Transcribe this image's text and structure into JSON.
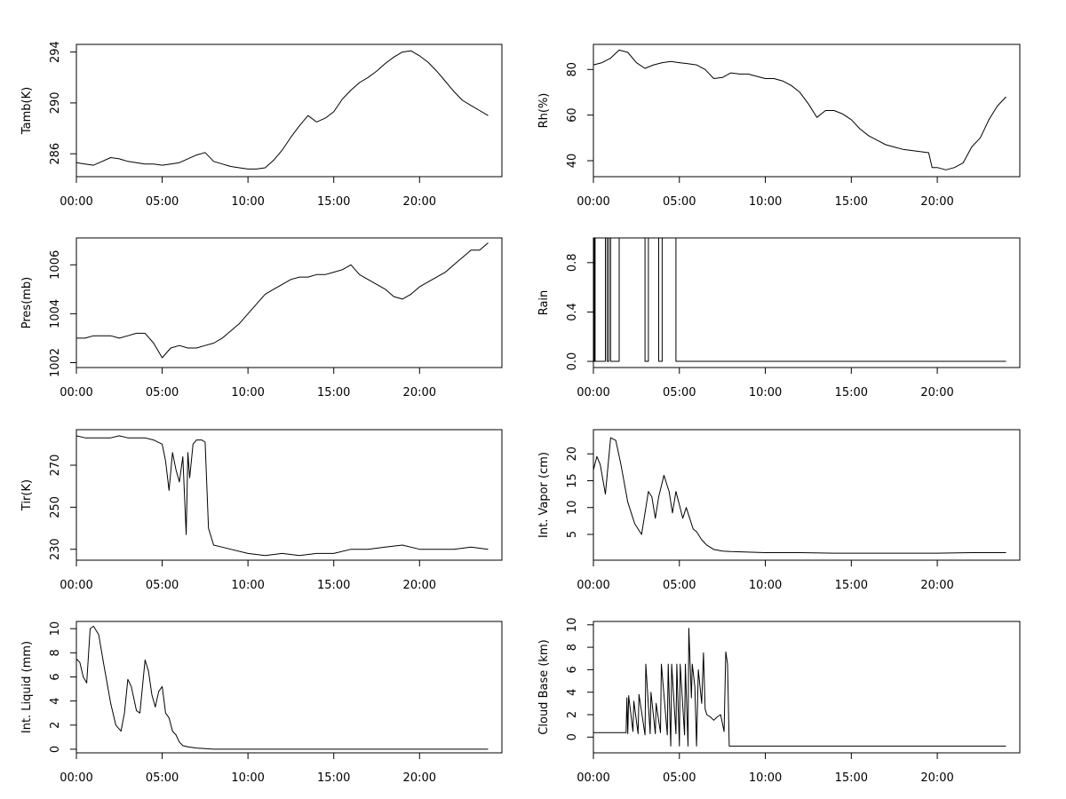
{
  "chart_data": [
    {
      "type": "line",
      "ylabel": "Tamb(K)",
      "xticks": [
        "00:00",
        "05:00",
        "10:00",
        "15:00",
        "20:00"
      ],
      "xlim": [
        0,
        24.8
      ],
      "ylim": [
        284.2,
        294.6
      ],
      "yticks": [
        286,
        290,
        294
      ],
      "series": [
        {
          "x": [
            0.0,
            0.5,
            1.0,
            1.5,
            2.0,
            2.5,
            3.0,
            3.5,
            4.0,
            4.5,
            5.0,
            5.5,
            6.0,
            6.5,
            7.0,
            7.5,
            8.0,
            8.5,
            9.0,
            9.5,
            10.0,
            10.5,
            11.0,
            11.5,
            12.0,
            12.5,
            13.0,
            13.5,
            14.0,
            14.5,
            15.0,
            15.5,
            16.0,
            16.5,
            17.0,
            17.5,
            18.0,
            18.5,
            19.0,
            19.5,
            20.0,
            20.5,
            21.0,
            21.5,
            22.0,
            22.5,
            23.0,
            23.5,
            24.0
          ],
          "y": [
            285.3,
            285.2,
            285.1,
            285.4,
            285.7,
            285.6,
            285.4,
            285.3,
            285.2,
            285.2,
            285.1,
            285.2,
            285.3,
            285.6,
            285.9,
            286.1,
            285.4,
            285.2,
            285.0,
            284.9,
            284.8,
            284.8,
            284.9,
            285.5,
            286.3,
            287.3,
            288.2,
            289.0,
            288.5,
            288.8,
            289.3,
            290.3,
            291.0,
            291.6,
            292.0,
            292.5,
            293.1,
            293.6,
            294.0,
            294.1,
            293.7,
            293.2,
            292.5,
            291.7,
            290.9,
            290.2,
            289.8,
            289.4,
            289.0
          ]
        }
      ]
    },
    {
      "type": "line",
      "ylabel": "Rh(%)",
      "xticks": [
        "00:00",
        "05:00",
        "10:00",
        "15:00",
        "20:00"
      ],
      "xlim": [
        0,
        24.8
      ],
      "ylim": [
        33,
        91
      ],
      "yticks": [
        40,
        60,
        80
      ],
      "series": [
        {
          "x": [
            0.0,
            0.5,
            1.0,
            1.5,
            2.0,
            2.5,
            3.0,
            3.5,
            4.0,
            4.5,
            5.0,
            5.5,
            6.0,
            6.5,
            7.0,
            7.5,
            8.0,
            8.5,
            9.0,
            9.5,
            10.0,
            10.5,
            11.0,
            11.5,
            12.0,
            12.5,
            13.0,
            13.5,
            14.0,
            14.5,
            15.0,
            15.5,
            16.0,
            16.5,
            17.0,
            17.5,
            18.0,
            18.5,
            19.0,
            19.5,
            19.7,
            20.0,
            20.5,
            21.0,
            21.5,
            22.0,
            22.5,
            23.0,
            23.5,
            24.0
          ],
          "y": [
            82.0,
            83.0,
            85.0,
            88.5,
            87.5,
            83.0,
            80.5,
            82.0,
            83.0,
            83.5,
            83.0,
            82.5,
            82.0,
            80.0,
            76.0,
            76.5,
            78.5,
            78.0,
            78.0,
            77.0,
            76.0,
            76.0,
            75.0,
            73.0,
            70.0,
            65.0,
            59.0,
            62.0,
            62.0,
            60.5,
            58.0,
            54.0,
            51.0,
            49.0,
            47.0,
            46.0,
            45.0,
            44.5,
            44.0,
            43.5,
            37.0,
            37.0,
            36.0,
            37.0,
            39.0,
            46.0,
            50.0,
            58.0,
            64.0,
            68.0
          ]
        }
      ]
    },
    {
      "type": "line",
      "ylabel": "Pres(mb)",
      "xticks": [
        "00:00",
        "05:00",
        "10:00",
        "15:00",
        "20:00"
      ],
      "xlim": [
        0,
        24.8
      ],
      "ylim": [
        1001.8,
        1007.1
      ],
      "yticks": [
        1002,
        1004,
        1006
      ],
      "series": [
        {
          "x": [
            0.0,
            0.5,
            1.0,
            1.5,
            2.0,
            2.5,
            3.0,
            3.5,
            4.0,
            4.5,
            5.0,
            5.5,
            6.0,
            6.5,
            7.0,
            7.5,
            8.0,
            8.5,
            9.0,
            9.5,
            10.0,
            10.5,
            11.0,
            11.5,
            12.0,
            12.5,
            13.0,
            13.5,
            14.0,
            14.5,
            15.0,
            15.5,
            16.0,
            16.5,
            17.0,
            17.5,
            18.0,
            18.5,
            19.0,
            19.5,
            20.0,
            20.5,
            21.0,
            21.5,
            22.0,
            22.5,
            23.0,
            23.5,
            24.0
          ],
          "y": [
            1003.0,
            1003.0,
            1003.1,
            1003.1,
            1003.1,
            1003.0,
            1003.1,
            1003.2,
            1003.2,
            1002.8,
            1002.2,
            1002.6,
            1002.7,
            1002.6,
            1002.6,
            1002.7,
            1002.8,
            1003.0,
            1003.3,
            1003.6,
            1004.0,
            1004.4,
            1004.8,
            1005.0,
            1005.2,
            1005.4,
            1005.5,
            1005.5,
            1005.6,
            1005.6,
            1005.7,
            1005.8,
            1006.0,
            1005.6,
            1005.4,
            1005.2,
            1005.0,
            1004.7,
            1004.6,
            1004.8,
            1005.1,
            1005.3,
            1005.5,
            1005.7,
            1006.0,
            1006.3,
            1006.6,
            1006.6,
            1006.9
          ]
        }
      ]
    },
    {
      "type": "line",
      "ylabel": "Rain",
      "xticks": [
        "00:00",
        "05:00",
        "10:00",
        "15:00",
        "20:00"
      ],
      "xlim": [
        0,
        24.8
      ],
      "ylim": [
        -0.05,
        1.0
      ],
      "yticks": [
        "0.0",
        "0.4",
        "0.8"
      ],
      "series": [
        {
          "x": [
            0.0,
            0.05,
            0.05,
            0.1,
            0.1,
            0.7,
            0.7,
            0.8,
            0.8,
            0.9,
            0.9,
            1.0,
            1.0,
            1.5,
            1.5,
            3.0,
            3.0,
            3.2,
            3.2,
            3.8,
            3.8,
            4.0,
            4.0,
            4.8,
            4.8,
            5.0,
            5.0,
            24.0
          ],
          "y": [
            0,
            0,
            1,
            1,
            0,
            0,
            1,
            1,
            0,
            0,
            1,
            1,
            0,
            0,
            1,
            1,
            0,
            0,
            1,
            1,
            0,
            0,
            1,
            1,
            0,
            0,
            0,
            0
          ]
        }
      ]
    },
    {
      "type": "line",
      "ylabel": "Tir(K)",
      "xticks": [
        "00:00",
        "05:00",
        "10:00",
        "15:00",
        "20:00"
      ],
      "xlim": [
        0,
        24.8
      ],
      "ylim": [
        224.8,
        286.9
      ],
      "yticks": [
        230,
        250,
        270
      ],
      "series": [
        {
          "x": [
            0.0,
            0.5,
            1.0,
            1.5,
            2.0,
            2.5,
            3.0,
            3.5,
            4.0,
            4.5,
            5.0,
            5.2,
            5.4,
            5.6,
            5.8,
            6.0,
            6.2,
            6.4,
            6.5,
            6.6,
            6.8,
            7.0,
            7.3,
            7.5,
            7.7,
            8.0,
            8.5,
            9.0,
            10.0,
            11.0,
            12.0,
            13.0,
            14.0,
            15.0,
            16.0,
            17.0,
            18.0,
            19.0,
            20.0,
            21.0,
            22.0,
            23.0,
            24.0
          ],
          "y": [
            284.0,
            283.0,
            283.0,
            283.0,
            283.0,
            284.0,
            283.0,
            283.0,
            283.0,
            282.0,
            280.0,
            272.0,
            258.0,
            276.0,
            268.0,
            262.0,
            274.0,
            237.0,
            276.0,
            264.0,
            280.0,
            282.0,
            282.0,
            281.0,
            240.0,
            232.0,
            231.0,
            230.0,
            228.0,
            227.0,
            228.0,
            227.0,
            228.0,
            228.0,
            230.0,
            230.0,
            231.0,
            232.0,
            230.0,
            230.0,
            230.0,
            231.0,
            230.0
          ]
        }
      ]
    },
    {
      "type": "line",
      "ylabel": "Int. Vapor (cm)",
      "xticks": [
        "00:00",
        "05:00",
        "10:00",
        "15:00",
        "20:00"
      ],
      "xlim": [
        0,
        24.8
      ],
      "ylim": [
        0.2,
        24.5
      ],
      "yticks": [
        5,
        10,
        15,
        20
      ],
      "series": [
        {
          "x": [
            0.0,
            0.2,
            0.4,
            0.7,
            1.0,
            1.3,
            1.6,
            2.0,
            2.4,
            2.8,
            3.0,
            3.2,
            3.4,
            3.6,
            3.8,
            4.1,
            4.4,
            4.6,
            4.8,
            5.0,
            5.2,
            5.4,
            5.6,
            5.8,
            6.0,
            6.3,
            6.6,
            7.0,
            7.5,
            8.0,
            9.0,
            10.0,
            12.0,
            14.0,
            16.0,
            18.0,
            20.0,
            22.0,
            24.0
          ],
          "y": [
            17.0,
            19.5,
            18.0,
            12.5,
            23.0,
            22.5,
            18.0,
            11.0,
            7.0,
            5.0,
            9.0,
            13.0,
            12.0,
            8.0,
            12.0,
            16.0,
            13.0,
            9.0,
            13.0,
            10.5,
            8.0,
            10.0,
            8.0,
            6.0,
            5.5,
            4.0,
            3.0,
            2.2,
            1.9,
            1.8,
            1.7,
            1.6,
            1.6,
            1.5,
            1.5,
            1.5,
            1.5,
            1.6,
            1.6
          ]
        }
      ]
    },
    {
      "type": "line",
      "ylabel": "Int. Liquid (mm)",
      "xticks": [
        "00:00",
        "05:00",
        "10:00",
        "15:00",
        "20:00"
      ],
      "xlim": [
        0,
        24.8
      ],
      "ylim": [
        -0.3,
        10.6
      ],
      "yticks": [
        0,
        2,
        4,
        6,
        8,
        10
      ],
      "series": [
        {
          "x": [
            0.0,
            0.2,
            0.4,
            0.6,
            0.8,
            1.0,
            1.3,
            1.6,
            2.0,
            2.3,
            2.6,
            2.8,
            3.0,
            3.2,
            3.5,
            3.7,
            4.0,
            4.2,
            4.4,
            4.6,
            4.8,
            5.0,
            5.2,
            5.4,
            5.6,
            5.8,
            6.0,
            6.2,
            6.5,
            7.0,
            7.5,
            8.0,
            10.0,
            12.0,
            14.0,
            16.0,
            18.0,
            20.0,
            22.0,
            24.0
          ],
          "y": [
            7.5,
            7.2,
            6.0,
            5.5,
            10.0,
            10.2,
            9.5,
            7.0,
            3.8,
            2.0,
            1.5,
            3.0,
            5.8,
            5.2,
            3.2,
            3.0,
            7.4,
            6.5,
            4.5,
            3.5,
            4.8,
            5.2,
            3.0,
            2.6,
            1.5,
            1.2,
            0.6,
            0.3,
            0.2,
            0.1,
            0.05,
            0.0,
            0.0,
            0.0,
            0.0,
            0.0,
            0.0,
            0.0,
            0.0,
            0.0
          ]
        }
      ]
    },
    {
      "type": "line",
      "ylabel": "Cloud Base (km)",
      "xticks": [
        "00:00",
        "05:00",
        "10:00",
        "15:00",
        "20:00"
      ],
      "xlim": [
        0,
        24.8
      ],
      "ylim": [
        -1.4,
        10.3
      ],
      "yticks": [
        0,
        2,
        4,
        6,
        8,
        10
      ],
      "series": [
        {
          "x": [
            0.0,
            1.9,
            1.95,
            2.0,
            2.05,
            2.3,
            2.35,
            2.6,
            2.65,
            3.0,
            3.05,
            3.3,
            3.35,
            3.6,
            3.65,
            3.9,
            3.95,
            4.3,
            4.35,
            4.5,
            4.55,
            4.8,
            4.85,
            5.0,
            5.05,
            5.3,
            5.35,
            5.5,
            5.55,
            5.7,
            5.75,
            5.9,
            6.0,
            6.1,
            6.3,
            6.4,
            6.5,
            6.6,
            6.8,
            7.0,
            7.2,
            7.4,
            7.6,
            7.7,
            7.8,
            7.9,
            8.0,
            24.0
          ],
          "y": [
            0.4,
            0.4,
            3.5,
            0.3,
            3.7,
            0.5,
            3.2,
            0.3,
            3.8,
            0.2,
            6.5,
            0.3,
            4.0,
            0.3,
            3.0,
            0.4,
            6.5,
            0.2,
            6.5,
            -0.8,
            6.5,
            0.3,
            6.5,
            -0.8,
            6.5,
            0.2,
            6.5,
            -0.8,
            9.7,
            3.5,
            6.5,
            4.5,
            -0.8,
            6.0,
            3.0,
            7.5,
            2.5,
            2.0,
            1.8,
            1.5,
            1.8,
            2.0,
            0.5,
            7.6,
            6.5,
            -0.8,
            -0.8,
            -0.8
          ]
        }
      ]
    }
  ]
}
